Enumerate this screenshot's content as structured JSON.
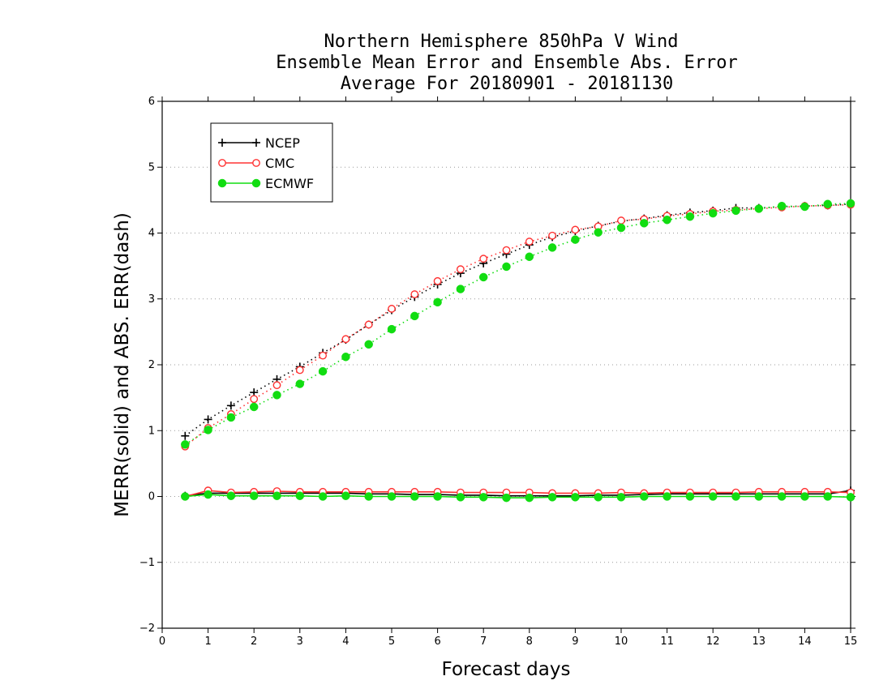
{
  "chart_data": {
    "type": "line",
    "title_lines": [
      "Northern Hemisphere 850hPa V Wind",
      "Ensemble Mean Error and Ensemble Abs. Error",
      "Average For 20180901 - 20181130"
    ],
    "xlabel": "Forecast days",
    "ylabel": "MERR(solid) and ABS. ERR(dash)",
    "xlim": [
      0,
      15
    ],
    "ylim": [
      -2,
      6
    ],
    "xticks": [
      "0",
      "1",
      "2",
      "3",
      "4",
      "5",
      "6",
      "7",
      "8",
      "9",
      "10",
      "11",
      "12",
      "13",
      "14",
      "15"
    ],
    "yticks": [
      "6",
      "5",
      "4",
      "3",
      "2",
      "1",
      "0",
      "−1",
      "−2"
    ],
    "grid": "horizontal dotted",
    "legend_position": "top-left",
    "legend": [
      "NCEP",
      "CMC",
      "ECMWF"
    ],
    "x": [
      0.5,
      1,
      1.5,
      2,
      2.5,
      3,
      3.5,
      4,
      4.5,
      5,
      5.5,
      6,
      6.5,
      7,
      7.5,
      8,
      8.5,
      9,
      9.5,
      10,
      10.5,
      11,
      11.5,
      12,
      12.5,
      13,
      13.5,
      14,
      14.5,
      15
    ],
    "series": [
      {
        "name": "NCEP",
        "color": "#000000",
        "marker": "plus",
        "abs_error": [
          0.92,
          1.17,
          1.38,
          1.58,
          1.78,
          1.97,
          2.18,
          2.38,
          2.61,
          2.83,
          3.03,
          3.22,
          3.39,
          3.54,
          3.68,
          3.82,
          3.94,
          4.03,
          4.11,
          4.18,
          4.22,
          4.27,
          4.31,
          4.34,
          4.38,
          4.38,
          4.4,
          4.41,
          4.42,
          4.44
        ],
        "mean_error": [
          0.01,
          0.05,
          0.05,
          0.05,
          0.05,
          0.05,
          0.05,
          0.05,
          0.04,
          0.04,
          0.03,
          0.03,
          0.02,
          0.02,
          0.01,
          0.01,
          0.01,
          0.01,
          0.02,
          0.02,
          0.03,
          0.04,
          0.04,
          0.04,
          0.04,
          0.04,
          0.04,
          0.04,
          0.04,
          0.09
        ]
      },
      {
        "name": "CMC",
        "color": "#ff3333",
        "marker": "open-circle",
        "abs_error": [
          0.76,
          1.04,
          1.25,
          1.48,
          1.69,
          1.92,
          2.14,
          2.39,
          2.61,
          2.85,
          3.07,
          3.27,
          3.45,
          3.61,
          3.74,
          3.87,
          3.96,
          4.05,
          4.1,
          4.19,
          4.21,
          4.26,
          4.29,
          4.33,
          4.35,
          4.37,
          4.39,
          4.41,
          4.42,
          4.43
        ],
        "mean_error": [
          0.0,
          0.09,
          0.06,
          0.07,
          0.08,
          0.07,
          0.07,
          0.07,
          0.07,
          0.07,
          0.07,
          0.07,
          0.06,
          0.06,
          0.06,
          0.06,
          0.05,
          0.05,
          0.05,
          0.06,
          0.05,
          0.06,
          0.06,
          0.06,
          0.06,
          0.07,
          0.07,
          0.07,
          0.07,
          0.06
        ]
      },
      {
        "name": "ECMWF",
        "color": "#11dd11",
        "marker": "filled-circle",
        "abs_error": [
          0.79,
          1.01,
          1.2,
          1.36,
          1.54,
          1.71,
          1.9,
          2.12,
          2.31,
          2.54,
          2.74,
          2.95,
          3.15,
          3.33,
          3.49,
          3.64,
          3.78,
          3.9,
          4.01,
          4.08,
          4.15,
          4.2,
          4.25,
          4.3,
          4.34,
          4.37,
          4.41,
          4.4,
          4.44,
          4.45
        ],
        "mean_error": [
          0.0,
          0.03,
          0.01,
          0.01,
          0.01,
          0.01,
          0.0,
          0.01,
          0.0,
          0.0,
          0.0,
          0.0,
          -0.01,
          -0.01,
          -0.02,
          -0.02,
          -0.01,
          -0.01,
          -0.01,
          -0.01,
          0.0,
          0.0,
          0.0,
          0.0,
          0.0,
          0.0,
          0.0,
          0.0,
          0.0,
          -0.01
        ]
      }
    ]
  }
}
